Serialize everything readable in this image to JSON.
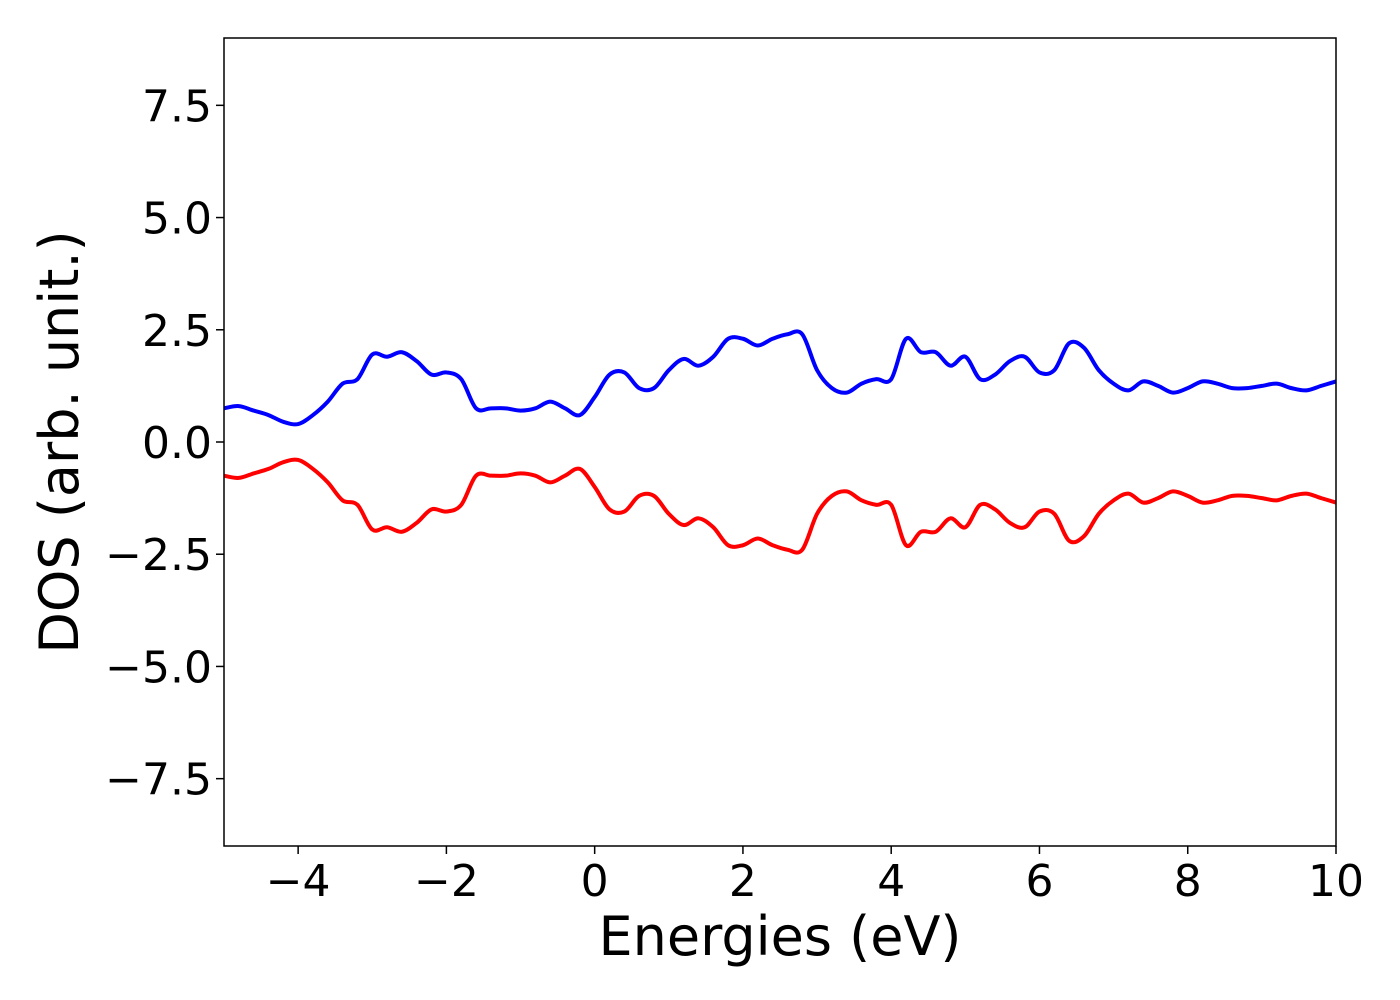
{
  "chart_data": {
    "type": "line",
    "xlabel": "Energies (eV)",
    "ylabel": "DOS (arb. unit.)",
    "xlim": [
      -5,
      10
    ],
    "ylim": [
      -9,
      9
    ],
    "xticks": [
      -4,
      -2,
      0,
      2,
      4,
      6,
      8,
      10
    ],
    "xtick_labels": [
      "−4",
      "−2",
      "0",
      "2",
      "4",
      "6",
      "8",
      "10"
    ],
    "yticks": [
      7.5,
      5.0,
      2.5,
      0.0,
      -2.5,
      -5.0,
      -7.5
    ],
    "ytick_labels": [
      "7.5",
      "5.0",
      "2.5",
      "0.0",
      "−2.5",
      "−5.0",
      "−7.5"
    ],
    "grid": false,
    "legend": "none",
    "x": [
      -5.0,
      -4.8,
      -4.6,
      -4.4,
      -4.2,
      -4.0,
      -3.8,
      -3.6,
      -3.4,
      -3.2,
      -3.0,
      -2.8,
      -2.6,
      -2.4,
      -2.2,
      -2.0,
      -1.8,
      -1.6,
      -1.4,
      -1.2,
      -1.0,
      -0.8,
      -0.6,
      -0.4,
      -0.2,
      0.0,
      0.2,
      0.4,
      0.6,
      0.8,
      1.0,
      1.2,
      1.4,
      1.6,
      1.8,
      2.0,
      2.2,
      2.4,
      2.6,
      2.8,
      3.0,
      3.2,
      3.4,
      3.6,
      3.8,
      4.0,
      4.2,
      4.4,
      4.6,
      4.8,
      5.0,
      5.2,
      5.4,
      5.6,
      5.8,
      6.0,
      6.2,
      6.4,
      6.6,
      6.8,
      7.0,
      7.2,
      7.4,
      7.6,
      7.8,
      8.0,
      8.2,
      8.4,
      8.6,
      8.8,
      9.0,
      9.2,
      9.4,
      9.6,
      9.8,
      10.0
    ],
    "series": [
      {
        "color": "#0000ff",
        "values": [
          0.75,
          0.8,
          0.7,
          0.6,
          0.45,
          0.4,
          0.6,
          0.9,
          1.3,
          1.4,
          1.95,
          1.9,
          2.0,
          1.8,
          1.5,
          1.55,
          1.4,
          0.75,
          0.75,
          0.75,
          0.7,
          0.75,
          0.9,
          0.75,
          0.6,
          1.0,
          1.5,
          1.55,
          1.2,
          1.2,
          1.6,
          1.85,
          1.7,
          1.9,
          2.3,
          2.3,
          2.15,
          2.3,
          2.4,
          2.4,
          1.6,
          1.2,
          1.1,
          1.3,
          1.4,
          1.4,
          2.3,
          2.0,
          2.0,
          1.7,
          1.9,
          1.4,
          1.5,
          1.8,
          1.9,
          1.55,
          1.6,
          2.2,
          2.1,
          1.6,
          1.3,
          1.15,
          1.35,
          1.25,
          1.1,
          1.2,
          1.35,
          1.3,
          1.2,
          1.2,
          1.25,
          1.3,
          1.2,
          1.15,
          1.25,
          1.35
        ]
      },
      {
        "color": "#ff0000",
        "values": [
          -0.75,
          -0.8,
          -0.7,
          -0.6,
          -0.45,
          -0.4,
          -0.6,
          -0.9,
          -1.3,
          -1.4,
          -1.95,
          -1.9,
          -2.0,
          -1.8,
          -1.5,
          -1.55,
          -1.4,
          -0.75,
          -0.75,
          -0.75,
          -0.7,
          -0.75,
          -0.9,
          -0.75,
          -0.6,
          -1.0,
          -1.5,
          -1.55,
          -1.2,
          -1.2,
          -1.6,
          -1.85,
          -1.7,
          -1.9,
          -2.3,
          -2.3,
          -2.15,
          -2.3,
          -2.4,
          -2.4,
          -1.6,
          -1.2,
          -1.1,
          -1.3,
          -1.4,
          -1.4,
          -2.3,
          -2.0,
          -2.0,
          -1.7,
          -1.9,
          -1.4,
          -1.5,
          -1.8,
          -1.9,
          -1.55,
          -1.6,
          -2.2,
          -2.1,
          -1.6,
          -1.3,
          -1.15,
          -1.35,
          -1.25,
          -1.1,
          -1.2,
          -1.35,
          -1.3,
          -1.2,
          -1.2,
          -1.25,
          -1.3,
          -1.2,
          -1.15,
          -1.25,
          -1.35
        ]
      }
    ]
  }
}
